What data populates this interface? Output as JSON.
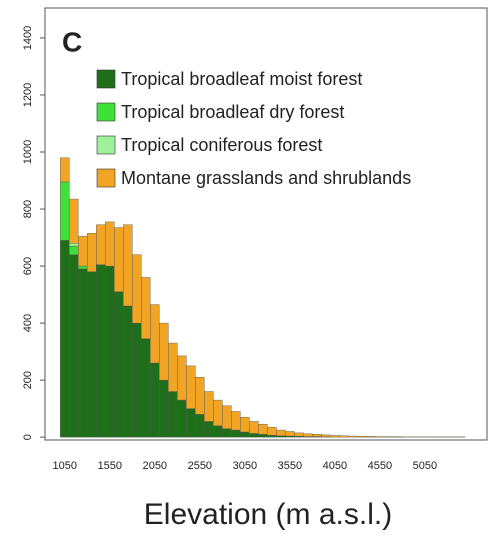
{
  "chart_data": {
    "type": "histogram",
    "title": "C",
    "xlabel": "Elevation (m a.s.l.)",
    "bins": [
      1000,
      1100,
      1200,
      1300,
      1400,
      1500,
      1600,
      1700,
      1800,
      1900,
      2000,
      2100,
      2200,
      2300,
      2400,
      2500,
      2600,
      2700,
      2800,
      2900,
      3000,
      3100,
      3200,
      3300,
      3400,
      3500,
      3600,
      3700,
      3800,
      3900,
      4000,
      4100,
      4200,
      4300,
      4400,
      4500,
      4600,
      4700,
      4800,
      4900,
      5000,
      5100,
      5200,
      5300,
      5400,
      5500
    ],
    "series": [
      {
        "name": "Tropical broadleaf moist forest",
        "color": "#1f6e1a",
        "values": [
          690,
          640,
          590,
          580,
          605,
          600,
          510,
          460,
          400,
          345,
          260,
          200,
          160,
          130,
          100,
          80,
          55,
          40,
          30,
          25,
          18,
          13,
          10,
          7,
          5,
          4,
          3,
          2,
          2,
          1,
          0,
          0,
          0,
          0,
          0,
          0,
          0,
          0,
          0,
          0,
          0,
          0,
          0,
          0,
          0
        ]
      },
      {
        "name": "Tropical broadleaf dry forest",
        "color": "#3ee03a",
        "values": [
          205,
          30,
          10,
          0,
          0,
          0,
          0,
          0,
          0,
          0,
          0,
          0,
          0,
          0,
          0,
          0,
          0,
          0,
          0,
          0,
          0,
          0,
          0,
          0,
          0,
          0,
          0,
          0,
          0,
          0,
          0,
          0,
          0,
          0,
          0,
          0,
          0,
          0,
          0,
          0,
          0,
          0,
          0,
          0,
          0
        ]
      },
      {
        "name": "Tropical coniferous forest",
        "color": "#9ef09a",
        "values": [
          0,
          10,
          0,
          0,
          0,
          0,
          0,
          0,
          0,
          0,
          0,
          0,
          0,
          0,
          0,
          0,
          0,
          0,
          0,
          0,
          0,
          0,
          0,
          0,
          0,
          0,
          0,
          0,
          0,
          0,
          0,
          0,
          0,
          0,
          0,
          0,
          0,
          0,
          0,
          0,
          0,
          0,
          0,
          0,
          0
        ]
      },
      {
        "name": "Montane grasslands and shrublands",
        "color": "#f2a524",
        "values": [
          85,
          155,
          105,
          135,
          140,
          155,
          225,
          285,
          240,
          215,
          205,
          200,
          170,
          155,
          150,
          130,
          105,
          90,
          80,
          65,
          52,
          42,
          35,
          28,
          20,
          16,
          12,
          10,
          8,
          7,
          6,
          5,
          4,
          3,
          3,
          2,
          2,
          2,
          1,
          1,
          1,
          1,
          1,
          1,
          1
        ]
      }
    ],
    "xlim": [
      830,
      5740
    ],
    "xticks": [
      1050,
      1550,
      2050,
      2550,
      3050,
      3550,
      4050,
      4550,
      5050
    ],
    "ylim": [
      -10,
      1505
    ],
    "yticks": [
      0,
      200,
      400,
      600,
      800,
      1000,
      1200,
      1400
    ],
    "stacked": true,
    "legend": "top-left"
  }
}
